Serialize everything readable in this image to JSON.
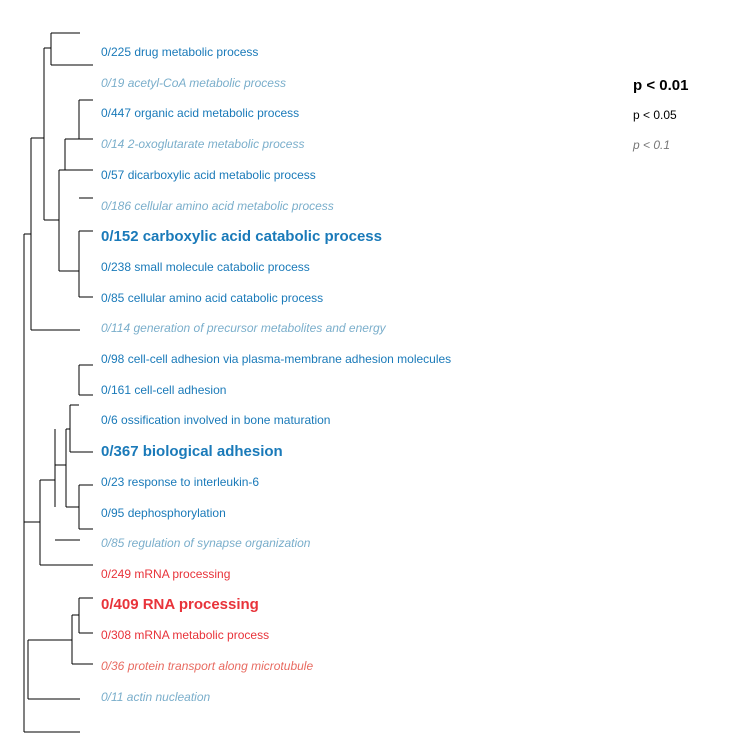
{
  "colors": {
    "blue": "#1a7ab9",
    "blue_faded": "#7aaecb",
    "red": "#e8333a",
    "red_faded": "#e86a60",
    "tree_line": "#000000"
  },
  "terms": [
    {
      "label": "0/225 drug metabolic process",
      "significance": "p<0.05",
      "group": "blue"
    },
    {
      "label": "0/19 acetyl-CoA metabolic process",
      "significance": "p<0.1",
      "group": "blue"
    },
    {
      "label": "0/447 organic acid metabolic process",
      "significance": "p<0.05",
      "group": "blue"
    },
    {
      "label": "0/14 2-oxoglutarate metabolic process",
      "significance": "p<0.1",
      "group": "blue"
    },
    {
      "label": "0/57 dicarboxylic acid metabolic process",
      "significance": "p<0.05",
      "group": "blue"
    },
    {
      "label": "0/186 cellular amino acid metabolic process",
      "significance": "p<0.1",
      "group": "blue"
    },
    {
      "label": "0/152 carboxylic acid catabolic process",
      "significance": "p<0.01",
      "group": "blue"
    },
    {
      "label": "0/238 small molecule catabolic process",
      "significance": "p<0.05",
      "group": "blue"
    },
    {
      "label": "0/85 cellular amino acid catabolic process",
      "significance": "p<0.05",
      "group": "blue"
    },
    {
      "label": "0/114 generation of precursor metabolites and energy",
      "significance": "p<0.1",
      "group": "blue"
    },
    {
      "label": "0/98 cell-cell adhesion via plasma-membrane adhesion molecules",
      "significance": "p<0.05",
      "group": "blue"
    },
    {
      "label": "0/161 cell-cell adhesion",
      "significance": "p<0.05",
      "group": "blue"
    },
    {
      "label": "0/6 ossification involved in bone maturation",
      "significance": "p<0.05",
      "group": "blue"
    },
    {
      "label": "0/367 biological adhesion",
      "significance": "p<0.01",
      "group": "blue"
    },
    {
      "label": "0/23 response to interleukin-6",
      "significance": "p<0.05",
      "group": "blue"
    },
    {
      "label": "0/95 dephosphorylation",
      "significance": "p<0.05",
      "group": "blue"
    },
    {
      "label": "0/85 regulation of synapse organization",
      "significance": "p<0.1",
      "group": "blue"
    },
    {
      "label": "0/249 mRNA processing",
      "significance": "p<0.05",
      "group": "red"
    },
    {
      "label": "0/409 RNA processing",
      "significance": "p<0.01",
      "group": "red"
    },
    {
      "label": "0/308 mRNA metabolic process",
      "significance": "p<0.05",
      "group": "red"
    },
    {
      "label": "0/36 protein transport along microtubule",
      "significance": "p<0.1",
      "group": "red"
    },
    {
      "label": "0/11 actin nucleation",
      "significance": "p<0.1",
      "group": "blue"
    }
  ],
  "legend": {
    "p01": "p < 0.01",
    "p05": "p < 0.05",
    "p1": "p < 0.1"
  }
}
